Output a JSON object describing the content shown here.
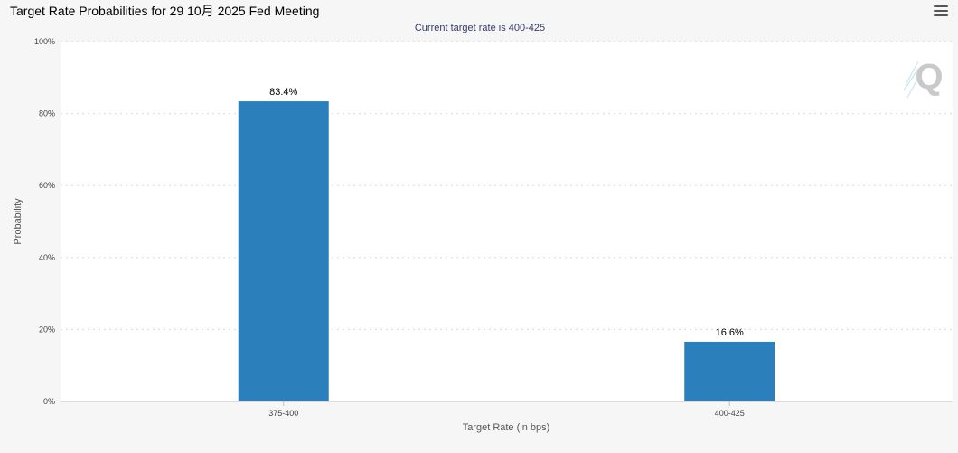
{
  "header": {
    "title": "Target Rate Probabilities for 29 10月 2025 Fed Meeting",
    "menu_icon": "hamburger-menu-icon"
  },
  "watermark": {
    "icon": "q-logo-icon",
    "text": "Q"
  },
  "chart_data": {
    "type": "bar",
    "title": "Target Rate Probabilities for 29 10月 2025 Fed Meeting",
    "subtitle": "Current target rate is 400-425",
    "categories": [
      "375-400",
      "400-425"
    ],
    "values": [
      83.4,
      16.6
    ],
    "data_labels": [
      "83.4%",
      "16.6%"
    ],
    "xlabel": "Target Rate (in bps)",
    "ylabel": "Probability",
    "ylim": [
      0,
      100
    ],
    "yticks": [
      0,
      20,
      40,
      60,
      80,
      100
    ],
    "ytick_labels": [
      "0%",
      "20%",
      "40%",
      "60%",
      "80%",
      "100%"
    ],
    "grid": true,
    "legend": "none",
    "bar_color": "#2b7fba"
  }
}
